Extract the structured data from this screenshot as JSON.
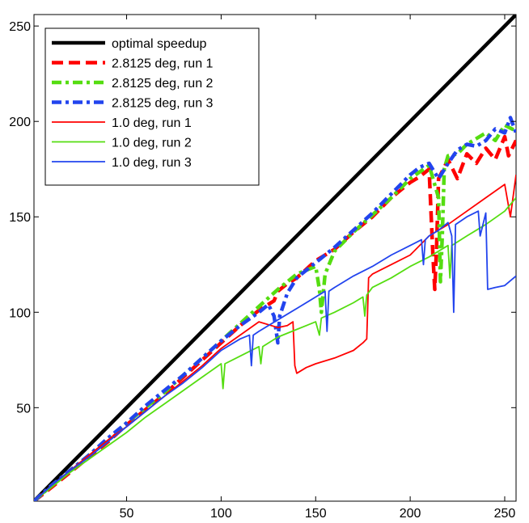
{
  "chart_data": {
    "type": "line",
    "title": "",
    "xlabel": "",
    "ylabel": "",
    "xlim": [
      1,
      256
    ],
    "ylim": [
      1,
      256
    ],
    "x_ticks": [
      50,
      100,
      150,
      200,
      250
    ],
    "y_ticks": [
      50,
      100,
      150,
      200,
      250
    ],
    "legend_position": "top-left",
    "series": [
      {
        "name": "optimal speedup",
        "color": "#000000",
        "style": "solid-thick",
        "x": [
          1,
          256
        ],
        "y": [
          1,
          256
        ]
      },
      {
        "name": "2.8125 deg, run 1",
        "color": "#ff0000",
        "style": "dashed-thick",
        "x": [
          1,
          10,
          20,
          30,
          40,
          50,
          60,
          70,
          80,
          90,
          100,
          110,
          120,
          128,
          130,
          135,
          140,
          150,
          160,
          170,
          180,
          190,
          200,
          205,
          210,
          212,
          213,
          214,
          215,
          220,
          225,
          230,
          235,
          240,
          245,
          250,
          252,
          256
        ],
        "y": [
          1,
          8,
          16,
          24,
          32,
          41,
          49,
          57,
          66,
          75,
          84,
          93,
          101,
          106,
          111,
          115,
          118,
          127,
          133,
          142,
          150,
          160,
          168,
          171,
          175,
          130,
          112,
          135,
          170,
          180,
          170,
          183,
          178,
          186,
          180,
          192,
          182,
          190
        ]
      },
      {
        "name": "2.8125 deg, run 2",
        "color": "#55dd11",
        "style": "dashdot-thick",
        "x": [
          1,
          10,
          20,
          30,
          40,
          50,
          60,
          70,
          80,
          90,
          100,
          110,
          120,
          130,
          140,
          150,
          152,
          153,
          155,
          160,
          170,
          180,
          190,
          200,
          210,
          215,
          216,
          217,
          218,
          220,
          225,
          230,
          240,
          245,
          250,
          256
        ],
        "y": [
          1,
          9,
          17,
          25,
          33,
          42,
          50,
          58,
          67,
          76,
          85,
          94,
          103,
          112,
          120,
          124,
          112,
          100,
          120,
          132,
          142,
          151,
          160,
          170,
          177,
          160,
          116,
          140,
          175,
          182,
          183,
          188,
          194,
          190,
          198,
          195
        ]
      },
      {
        "name": "2.8125 deg, run 3",
        "color": "#2244ee",
        "style": "dashdot-thick",
        "x": [
          1,
          10,
          20,
          30,
          40,
          50,
          60,
          70,
          80,
          90,
          100,
          110,
          120,
          125,
          128,
          130,
          131,
          135,
          140,
          150,
          160,
          170,
          180,
          190,
          200,
          205,
          210,
          215,
          220,
          225,
          230,
          235,
          240,
          245,
          250,
          253,
          256
        ],
        "y": [
          1,
          9,
          17,
          25,
          34,
          42,
          51,
          59,
          67,
          76,
          85,
          93,
          100,
          104,
          98,
          84,
          98,
          110,
          118,
          126,
          134,
          143,
          152,
          162,
          172,
          176,
          178,
          170,
          178,
          185,
          188,
          187,
          190,
          196,
          194,
          202,
          194
        ]
      },
      {
        "name": "1.0 deg, run 1",
        "color": "#ff0000",
        "style": "solid",
        "x": [
          1,
          10,
          20,
          30,
          40,
          50,
          60,
          70,
          80,
          90,
          100,
          110,
          120,
          130,
          135,
          138,
          139,
          140,
          145,
          150,
          160,
          170,
          175,
          177,
          178,
          180,
          190,
          200,
          210,
          220,
          230,
          240,
          250,
          253,
          256
        ],
        "y": [
          1,
          9,
          17,
          25,
          33,
          40,
          48,
          56,
          64,
          72,
          81,
          88,
          95,
          92,
          93,
          95,
          72,
          68,
          71,
          73,
          76,
          80,
          84,
          86,
          118,
          120,
          125,
          130,
          140,
          146,
          153,
          160,
          167,
          150,
          172
        ]
      },
      {
        "name": "1.0 deg, run 2",
        "color": "#55dd11",
        "style": "solid",
        "x": [
          1,
          10,
          20,
          30,
          40,
          50,
          60,
          70,
          80,
          90,
          100,
          101,
          102,
          110,
          120,
          121,
          122,
          130,
          140,
          150,
          152,
          153,
          160,
          170,
          175,
          176,
          177,
          180,
          190,
          200,
          210,
          220,
          221,
          222,
          230,
          240,
          250,
          256
        ],
        "y": [
          1,
          8,
          16,
          23,
          30,
          37,
          45,
          52,
          59,
          66,
          73,
          60,
          73,
          77,
          82,
          73,
          82,
          87,
          91,
          95,
          88,
          97,
          100,
          105,
          108,
          98,
          109,
          113,
          118,
          124,
          129,
          135,
          118,
          135,
          140,
          146,
          153,
          160
        ]
      },
      {
        "name": "1.0 deg, run 3",
        "color": "#2244ee",
        "style": "solid",
        "x": [
          1,
          10,
          20,
          30,
          40,
          50,
          60,
          70,
          80,
          90,
          100,
          110,
          115,
          116,
          117,
          120,
          130,
          140,
          150,
          155,
          156,
          157,
          160,
          170,
          180,
          190,
          200,
          206,
          207,
          208,
          210,
          215,
          220,
          222,
          223,
          224,
          230,
          236,
          237,
          240,
          241,
          245,
          250,
          256
        ],
        "y": [
          1,
          9,
          17,
          24,
          32,
          40,
          48,
          56,
          63,
          71,
          80,
          86,
          88,
          72,
          88,
          90,
          96,
          102,
          108,
          111,
          90,
          111,
          113,
          119,
          124,
          130,
          135,
          138,
          125,
          138,
          140,
          143,
          147,
          140,
          100,
          146,
          150,
          153,
          140,
          152,
          112,
          113,
          114,
          119
        ]
      }
    ]
  }
}
